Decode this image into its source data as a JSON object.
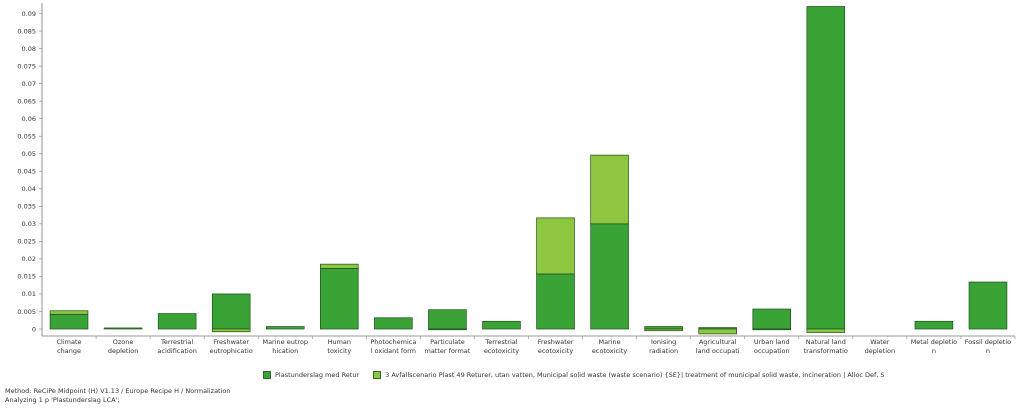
{
  "chart_data": {
    "type": "bar",
    "stacked": true,
    "ylim": [
      -0.002,
      0.093
    ],
    "yticks": [
      0,
      0.005,
      0.01,
      0.015,
      0.02,
      0.025,
      0.03,
      0.035,
      0.04,
      0.045,
      0.05,
      0.055,
      0.06,
      0.065,
      0.07,
      0.075,
      0.08,
      0.085,
      0.09
    ],
    "categories": [
      [
        "Climate",
        "change"
      ],
      [
        "Ozone",
        "depletion"
      ],
      [
        "Terrestrial",
        "acidification"
      ],
      [
        "Freshwater",
        "eutrophicatio"
      ],
      [
        "Marine eutrop",
        "hication"
      ],
      [
        "Human",
        "toxicity"
      ],
      [
        "Photochemica",
        "l oxidant form"
      ],
      [
        "Particulate",
        "matter format"
      ],
      [
        "Terrestrial",
        "ecotoxicity"
      ],
      [
        "Freshwater",
        "ecotoxicity"
      ],
      [
        "Marine",
        "ecotoxicity"
      ],
      [
        "Ionising",
        "radiation"
      ],
      [
        "Agricultural",
        "land occupati"
      ],
      [
        "Urban land",
        "occupation"
      ],
      [
        "Natural land",
        "transformatio"
      ],
      [
        "Water",
        "depletion"
      ],
      [
        "Metal depletio",
        "n"
      ],
      [
        "Fossil depletio",
        "n"
      ]
    ],
    "series": [
      {
        "name": "Plastunderslag med Retur",
        "color": "#3aa335",
        "values": [
          0.0042,
          0.0003,
          0.0044,
          0.01,
          0.0007,
          0.0173,
          0.0032,
          0.0055,
          0.0022,
          0.0157,
          0.03,
          0.0007,
          0.0004,
          0.0057,
          0.092,
          0.0,
          0.0022,
          0.0134
        ]
      },
      {
        "name": "3 Avfallscenario Plast 49 Returer, utan vatten, Municipal solid waste (waste scenario) {SE}| treatment of municipal solid waste, incineration | Alloc Def, S",
        "color": "#8dc63f",
        "values": [
          0.001,
          0.0,
          0.0,
          -0.0008,
          0.0,
          0.0012,
          0.0,
          -0.0002,
          0.0,
          0.016,
          0.0196,
          -0.0005,
          -0.0014,
          -0.0002,
          -0.001,
          0.0,
          0.0,
          0.0
        ]
      }
    ]
  },
  "footer": {
    "method": "Method: ReCiPe Midpoint (H) V1.13 / Europe Recipe H / Normalization",
    "analyzing": "Analyzing 1 p 'Plastunderslag LCA';"
  }
}
